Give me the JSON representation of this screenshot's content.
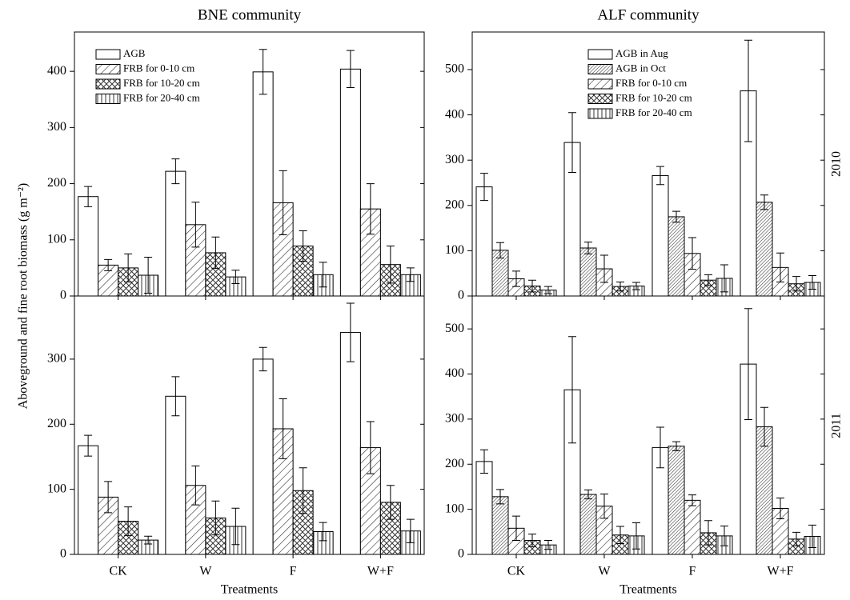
{
  "figure": {
    "y_label": "Aboveground and fine root biomass (g m⁻²)",
    "row_labels": [
      "2010",
      "2011"
    ]
  },
  "chart_data": [
    {
      "type": "bar",
      "title": "BNE community",
      "legend": "upper left",
      "ylim": [
        0,
        470
      ],
      "yticks": [
        0,
        100,
        200,
        300,
        400
      ],
      "series": [
        {
          "name": "AGB",
          "pattern": "none",
          "values": [
            177,
            222,
            399,
            404
          ],
          "errors": [
            18,
            22,
            40,
            33
          ]
        },
        {
          "name": "FRB for 0-10 cm",
          "pattern": "diagonal",
          "values": [
            55,
            127,
            166,
            155
          ],
          "errors": [
            10,
            40,
            57,
            45
          ]
        },
        {
          "name": "FRB for 10-20 cm",
          "pattern": "crosshatch",
          "values": [
            50,
            77,
            89,
            56
          ],
          "errors": [
            25,
            28,
            27,
            33
          ]
        },
        {
          "name": "FRB for 20-40 cm",
          "pattern": "vertical",
          "values": [
            37,
            34,
            38,
            38
          ],
          "errors": [
            32,
            12,
            22,
            12
          ]
        }
      ]
    },
    {
      "type": "bar",
      "title": "ALF community",
      "legend": "upper center",
      "ylim": [
        0,
        583
      ],
      "yticks": [
        0,
        100,
        200,
        300,
        400,
        500
      ],
      "series": [
        {
          "name": "AGB in Aug",
          "pattern": "none",
          "values": [
            241,
            339,
            266,
            453
          ],
          "errors": [
            30,
            66,
            20,
            112
          ]
        },
        {
          "name": "AGB in Oct",
          "pattern": "diagonal-dense",
          "values": [
            101,
            106,
            175,
            207
          ],
          "errors": [
            17,
            13,
            12,
            16
          ]
        },
        {
          "name": "FRB for 0-10 cm",
          "pattern": "diagonal",
          "values": [
            38,
            60,
            94,
            63
          ],
          "errors": [
            17,
            30,
            35,
            32
          ]
        },
        {
          "name": "FRB for 10-20 cm",
          "pattern": "crosshatch",
          "values": [
            22,
            21,
            35,
            27
          ],
          "errors": [
            13,
            10,
            12,
            16
          ]
        },
        {
          "name": "FRB for 20-40 cm",
          "pattern": "vertical",
          "values": [
            13,
            22,
            39,
            30
          ],
          "errors": [
            8,
            8,
            30,
            15
          ]
        }
      ]
    },
    {
      "type": "bar",
      "x_label": "Treatments",
      "categories": [
        "CK",
        "W",
        "F",
        "W+F"
      ],
      "ylim": [
        0,
        397
      ],
      "yticks": [
        0,
        100,
        200,
        300
      ],
      "series": [
        {
          "pattern": "none",
          "values": [
            167,
            243,
            300,
            341
          ],
          "errors": [
            16,
            30,
            18,
            45
          ]
        },
        {
          "pattern": "diagonal",
          "values": [
            88,
            106,
            193,
            164
          ],
          "errors": [
            24,
            30,
            46,
            40
          ]
        },
        {
          "pattern": "crosshatch",
          "values": [
            51,
            56,
            98,
            80
          ],
          "errors": [
            22,
            26,
            35,
            26
          ]
        },
        {
          "pattern": "vertical",
          "values": [
            22,
            43,
            35,
            36
          ],
          "errors": [
            6,
            28,
            14,
            18
          ]
        }
      ]
    },
    {
      "type": "bar",
      "x_label": "Treatments",
      "categories": [
        "CK",
        "W",
        "F",
        "W+F"
      ],
      "ylim": [
        0,
        573
      ],
      "yticks": [
        0,
        100,
        200,
        300,
        400,
        500
      ],
      "series": [
        {
          "pattern": "none",
          "values": [
            206,
            365,
            237,
            422
          ],
          "errors": [
            26,
            118,
            45,
            123
          ]
        },
        {
          "pattern": "diagonal-dense",
          "values": [
            128,
            133,
            240,
            283
          ],
          "errors": [
            16,
            10,
            10,
            43
          ]
        },
        {
          "pattern": "diagonal",
          "values": [
            58,
            107,
            120,
            102
          ],
          "errors": [
            27,
            27,
            12,
            23
          ]
        },
        {
          "pattern": "crosshatch",
          "values": [
            31,
            43,
            48,
            34
          ],
          "errors": [
            14,
            19,
            27,
            15
          ]
        },
        {
          "pattern": "vertical",
          "values": [
            21,
            41,
            41,
            40
          ],
          "errors": [
            10,
            29,
            22,
            25
          ]
        }
      ]
    }
  ]
}
